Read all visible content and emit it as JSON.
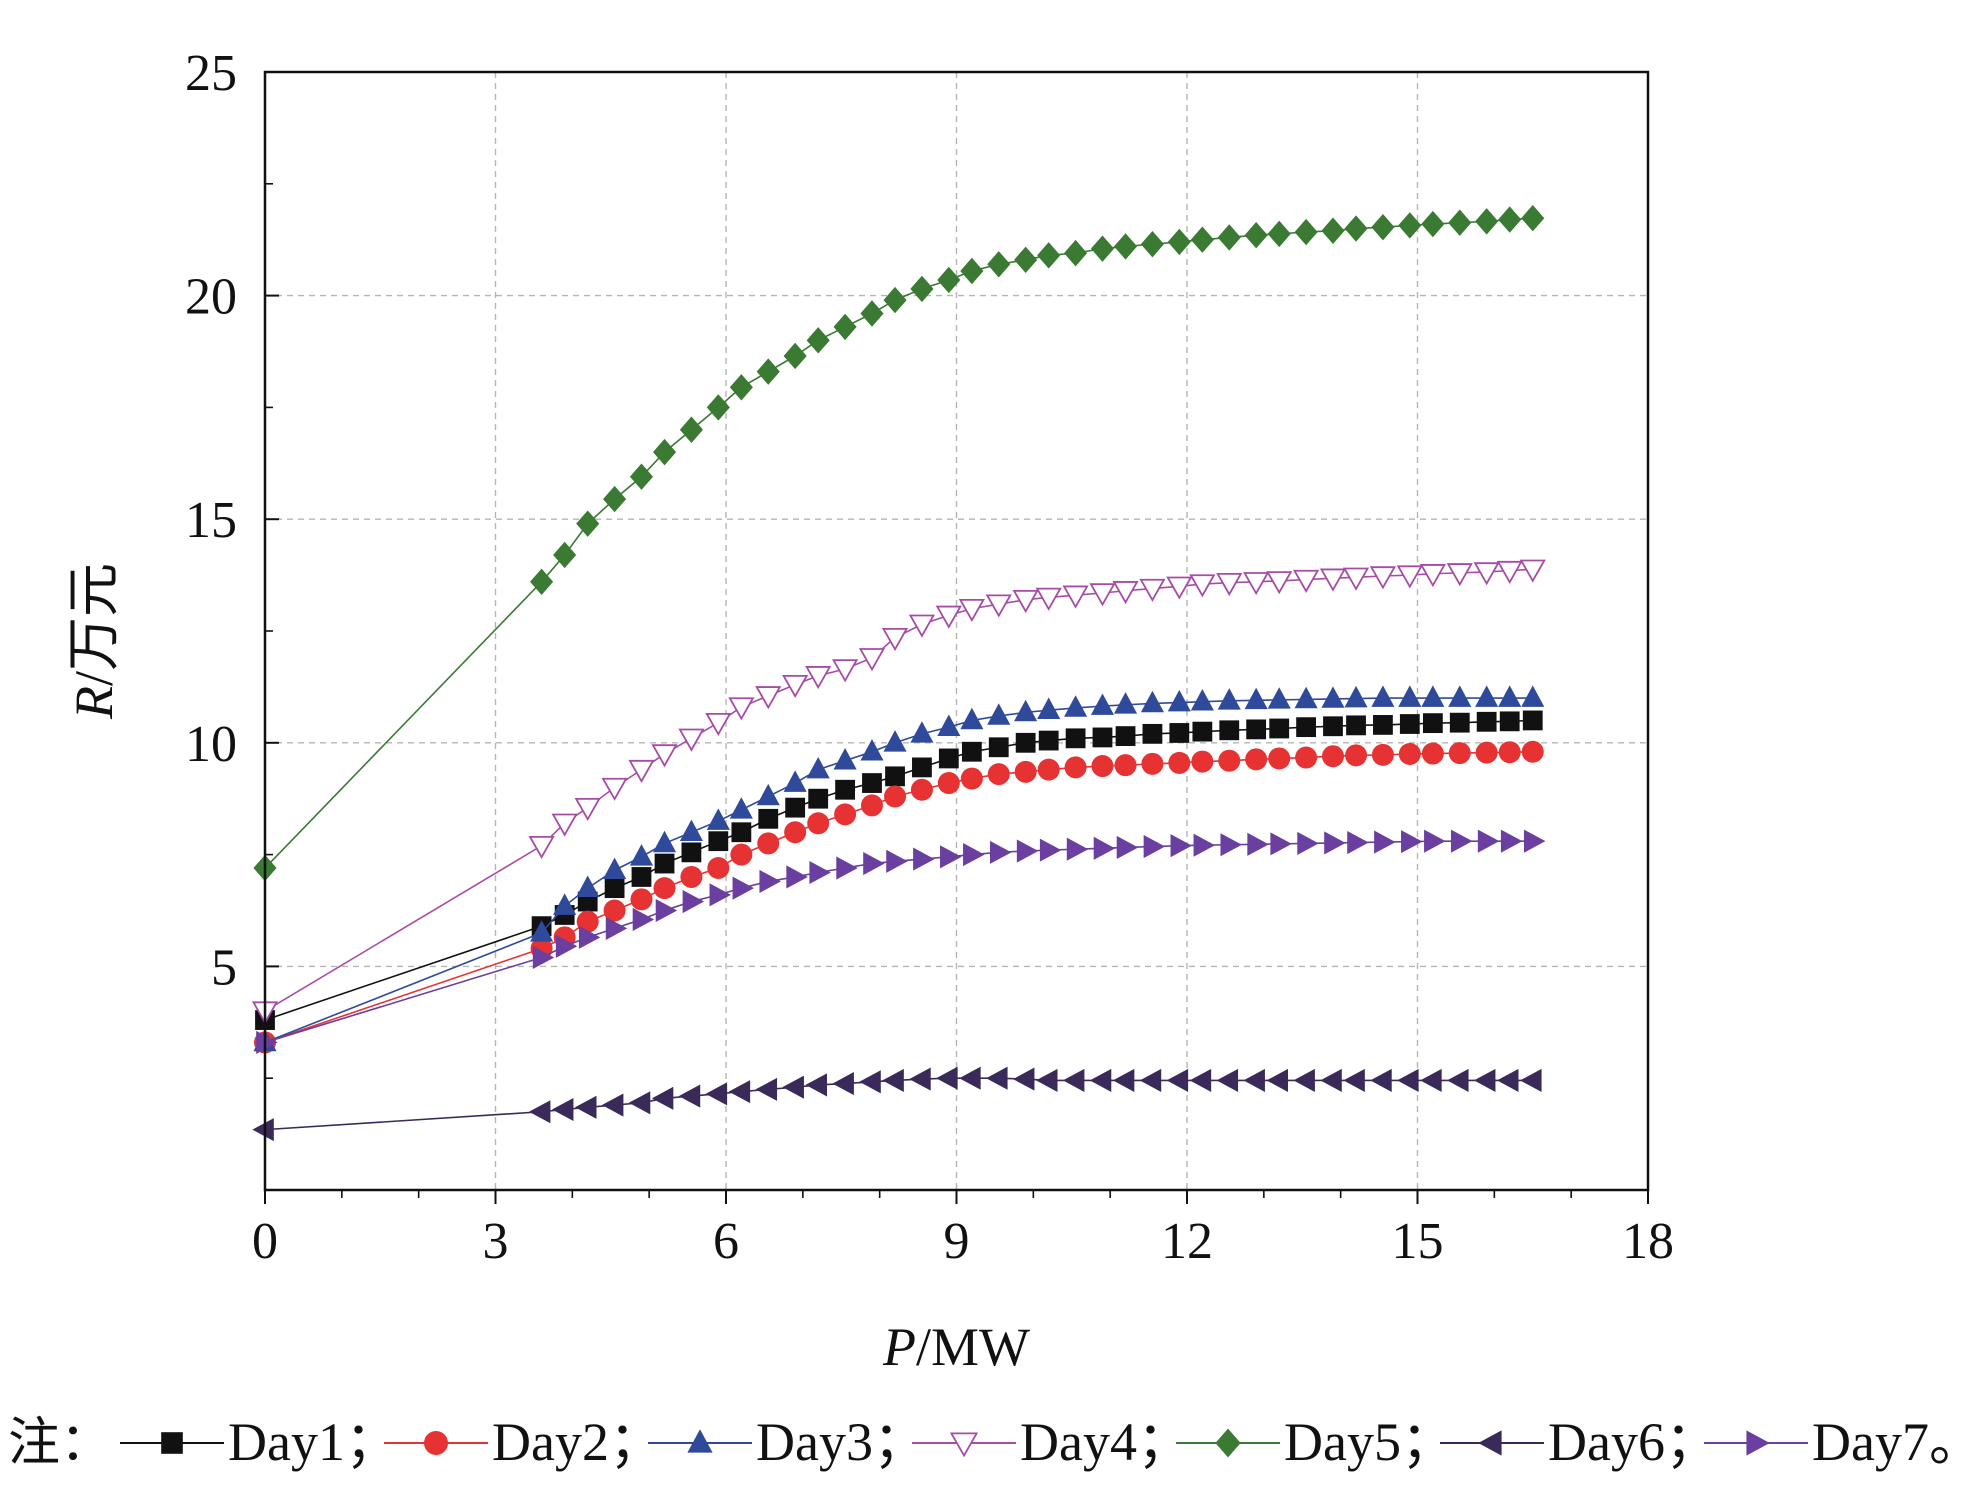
{
  "chart_data": {
    "type": "line",
    "xlabel": {
      "italic": "P",
      "rest": "/MW"
    },
    "ylabel": {
      "italic": "R",
      "rest": "/万元"
    },
    "xlim": [
      0,
      18
    ],
    "ylim": [
      0,
      25
    ],
    "x_ticks": [
      0,
      3,
      6,
      9,
      12,
      15,
      18
    ],
    "y_ticks": [
      5,
      10,
      15,
      20,
      25
    ],
    "x_tick_labels": [
      "0",
      "3",
      "6",
      "9",
      "12",
      "15",
      "18"
    ],
    "y_tick_labels": [
      "5",
      "10",
      "15",
      "20",
      "25"
    ],
    "grid": "dashed",
    "legend_prefix": "注：",
    "legend_position": "bottom",
    "x": [
      0,
      3.6,
      3.9,
      4.2,
      4.55,
      4.9,
      5.2,
      5.55,
      5.9,
      6.2,
      6.55,
      6.9,
      7.2,
      7.55,
      7.9,
      8.2,
      8.55,
      8.9,
      9.2,
      9.55,
      9.9,
      10.2,
      10.55,
      10.9,
      11.2,
      11.55,
      11.9,
      12.2,
      12.55,
      12.9,
      13.2,
      13.55,
      13.9,
      14.2,
      14.55,
      14.9,
      15.2,
      15.55,
      15.9,
      16.2,
      16.5
    ],
    "series": [
      {
        "name": "Day1",
        "color": "#111111",
        "marker": "square",
        "values": [
          3.8,
          5.9,
          6.15,
          6.45,
          6.75,
          7.0,
          7.3,
          7.55,
          7.8,
          8.0,
          8.3,
          8.55,
          8.75,
          8.95,
          9.1,
          9.25,
          9.45,
          9.65,
          9.8,
          9.9,
          10.0,
          10.05,
          10.1,
          10.12,
          10.15,
          10.2,
          10.22,
          10.25,
          10.28,
          10.3,
          10.32,
          10.35,
          10.37,
          10.39,
          10.4,
          10.42,
          10.44,
          10.45,
          10.47,
          10.48,
          10.5
        ]
      },
      {
        "name": "Day2",
        "color": "#e63232",
        "marker": "circle",
        "values": [
          3.3,
          5.4,
          5.65,
          6.0,
          6.25,
          6.5,
          6.75,
          7.0,
          7.2,
          7.5,
          7.75,
          8.0,
          8.2,
          8.4,
          8.6,
          8.8,
          8.95,
          9.1,
          9.2,
          9.3,
          9.35,
          9.4,
          9.45,
          9.48,
          9.5,
          9.53,
          9.55,
          9.58,
          9.6,
          9.63,
          9.65,
          9.67,
          9.7,
          9.72,
          9.73,
          9.75,
          9.76,
          9.77,
          9.78,
          9.79,
          9.8
        ]
      },
      {
        "name": "Day3",
        "color": "#2f4a9a",
        "marker": "triangle-up",
        "values": [
          3.3,
          5.75,
          6.35,
          6.75,
          7.15,
          7.45,
          7.75,
          8.0,
          8.25,
          8.5,
          8.8,
          9.1,
          9.4,
          9.6,
          9.8,
          10.0,
          10.2,
          10.35,
          10.5,
          10.6,
          10.68,
          10.73,
          10.78,
          10.82,
          10.85,
          10.88,
          10.9,
          10.92,
          10.94,
          10.95,
          10.96,
          10.97,
          10.98,
          10.99,
          11.0,
          11.0,
          11.0,
          11.0,
          11.0,
          11.0,
          11.0
        ]
      },
      {
        "name": "Day4",
        "color": "#a64ca6",
        "marker": "triangle-down-open",
        "values": [
          4.0,
          7.7,
          8.2,
          8.55,
          9.0,
          9.4,
          9.75,
          10.1,
          10.45,
          10.8,
          11.05,
          11.3,
          11.5,
          11.65,
          11.9,
          12.35,
          12.65,
          12.85,
          13.0,
          13.1,
          13.2,
          13.25,
          13.3,
          13.35,
          13.4,
          13.45,
          13.5,
          13.55,
          13.58,
          13.6,
          13.62,
          13.65,
          13.68,
          13.7,
          13.73,
          13.75,
          13.78,
          13.8,
          13.82,
          13.85,
          13.88
        ]
      },
      {
        "name": "Day5",
        "color": "#3a7a32",
        "marker": "diamond",
        "values": [
          7.2,
          13.6,
          14.2,
          14.9,
          15.45,
          15.95,
          16.5,
          17.0,
          17.5,
          17.95,
          18.3,
          18.65,
          19.0,
          19.3,
          19.6,
          19.9,
          20.15,
          20.35,
          20.55,
          20.7,
          20.8,
          20.9,
          20.95,
          21.05,
          21.1,
          21.15,
          21.2,
          21.25,
          21.3,
          21.35,
          21.38,
          21.42,
          21.45,
          21.5,
          21.53,
          21.57,
          21.6,
          21.63,
          21.66,
          21.7,
          21.73
        ]
      },
      {
        "name": "Day6",
        "color": "#3a2a5a",
        "marker": "triangle-left",
        "values": [
          1.35,
          1.75,
          1.8,
          1.85,
          1.9,
          1.95,
          2.05,
          2.1,
          2.15,
          2.2,
          2.25,
          2.3,
          2.35,
          2.38,
          2.42,
          2.45,
          2.48,
          2.5,
          2.5,
          2.5,
          2.48,
          2.45,
          2.45,
          2.45,
          2.45,
          2.45,
          2.45,
          2.45,
          2.45,
          2.45,
          2.45,
          2.45,
          2.45,
          2.45,
          2.45,
          2.45,
          2.45,
          2.45,
          2.45,
          2.45,
          2.45
        ]
      },
      {
        "name": "Day7",
        "color": "#6a3fa0",
        "marker": "triangle-right",
        "values": [
          3.3,
          5.2,
          5.45,
          5.65,
          5.85,
          6.05,
          6.25,
          6.45,
          6.6,
          6.75,
          6.9,
          7.0,
          7.1,
          7.2,
          7.3,
          7.35,
          7.4,
          7.45,
          7.5,
          7.55,
          7.58,
          7.6,
          7.62,
          7.64,
          7.66,
          7.68,
          7.7,
          7.71,
          7.72,
          7.73,
          7.74,
          7.75,
          7.76,
          7.77,
          7.78,
          7.79,
          7.8,
          7.8,
          7.8,
          7.8,
          7.8
        ]
      }
    ]
  }
}
